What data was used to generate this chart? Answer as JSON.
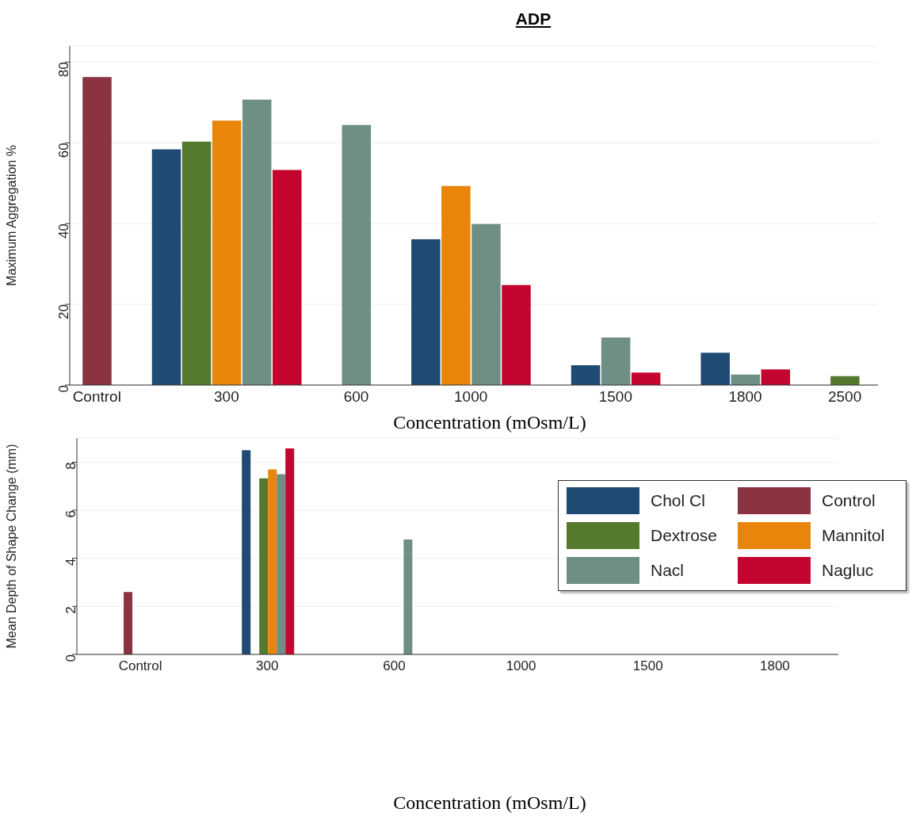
{
  "chart_data": [
    {
      "type": "bar",
      "title": "ADP",
      "xlabel": "Concentration (mOsm/L)",
      "ylabel": "Maximum Aggregation %",
      "categories": [
        "Control",
        "300",
        "600",
        "1000",
        "1500",
        "1800",
        "2500"
      ],
      "ylim": [
        0,
        84
      ],
      "yticks": [
        0,
        20,
        40,
        60,
        80
      ],
      "grid": "y",
      "legend": false,
      "series": [
        {
          "color": "#1f4a74",
          "values": [
            null,
            58.4,
            null,
            36.1,
            4.9,
            8.0,
            null
          ]
        },
        {
          "color": "#8b3340",
          "values": [
            76.3,
            null,
            null,
            null,
            null,
            null,
            null
          ]
        },
        {
          "color": "#557a2e",
          "values": [
            null,
            60.3,
            null,
            null,
            null,
            null,
            2.2
          ]
        },
        {
          "color": "#e8850a",
          "values": [
            null,
            65.5,
            null,
            49.3,
            null,
            null,
            null
          ]
        },
        {
          "color": "#6f8e85",
          "values": [
            null,
            70.7,
            64.4,
            39.9,
            11.8,
            2.6,
            null
          ]
        },
        {
          "color": "#c4052f",
          "values": [
            null,
            53.3,
            null,
            24.8,
            3.1,
            3.9,
            null
          ]
        }
      ]
    },
    {
      "type": "bar",
      "xlabel": "Concentration (mOsm/L)",
      "ylabel": "Mean Depth of Shape Change (mm)",
      "categories": [
        "Control",
        "300",
        "600",
        "1000",
        "1500",
        "1800"
      ],
      "ylim": [
        0,
        9
      ],
      "yticks": [
        0,
        2,
        4,
        6,
        8
      ],
      "grid": "y",
      "legend": "top right",
      "series": [
        {
          "name": "Chol Cl",
          "color": "#1f4a74",
          "values": [
            null,
            8.5,
            null,
            null,
            null,
            null
          ]
        },
        {
          "name": "Control",
          "color": "#8b3340",
          "values": [
            2.6,
            null,
            null,
            null,
            null,
            null
          ]
        },
        {
          "name": "Dextrose",
          "color": "#557a2e",
          "values": [
            null,
            7.33,
            null,
            null,
            null,
            null
          ]
        },
        {
          "name": "Mannitol",
          "color": "#e8850a",
          "values": [
            null,
            7.7,
            null,
            null,
            null,
            null
          ]
        },
        {
          "name": "Nacl",
          "color": "#6f8e85",
          "values": [
            null,
            7.5,
            4.78,
            null,
            null,
            null
          ]
        },
        {
          "name": "Nagluc",
          "color": "#c4052f",
          "values": [
            null,
            8.57,
            null,
            null,
            null,
            null
          ]
        }
      ]
    }
  ]
}
